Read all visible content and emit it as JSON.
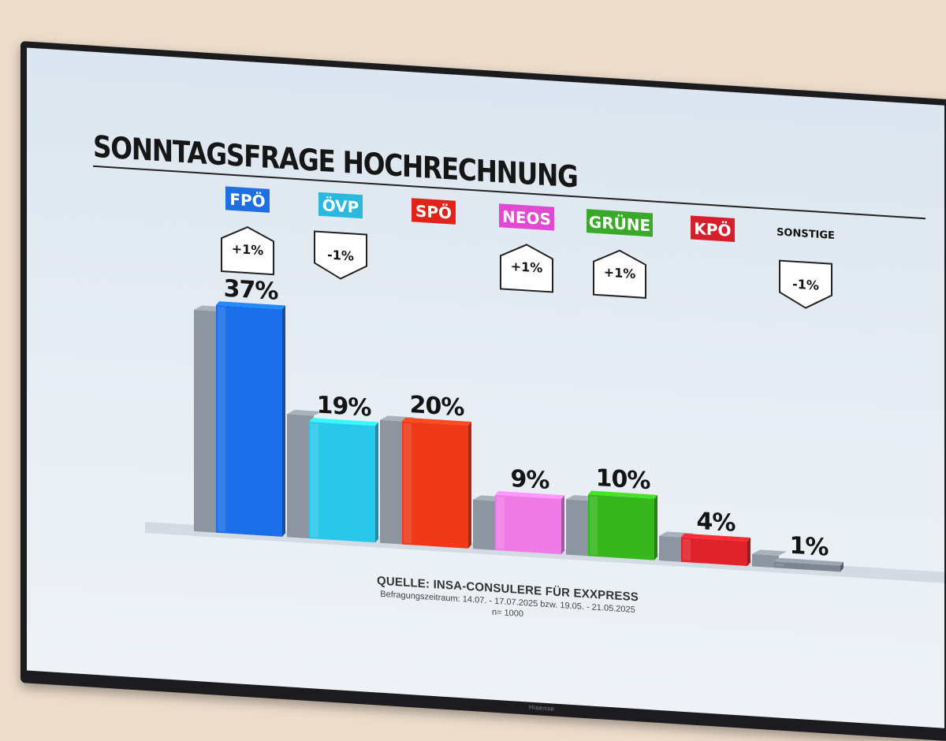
{
  "chart_data": {
    "type": "bar",
    "title": "SONNTAGSFRAGE HOCHRECHNUNG",
    "categories": [
      "FPÖ",
      "ÖVP",
      "SPÖ",
      "NEOS",
      "GRÜNE",
      "KPÖ",
      "SONSTIGE"
    ],
    "series": [
      {
        "values": [
          37,
          19,
          20,
          9,
          10,
          4,
          1
        ]
      }
    ],
    "previous_values": [
      36,
      20,
      20,
      8,
      9,
      4,
      2
    ],
    "value_labels": [
      "37%",
      "19%",
      "20%",
      "9%",
      "10%",
      "4%",
      "1%"
    ],
    "changes": [
      "+1%",
      "-1%",
      "",
      "+1%",
      "+1%",
      "",
      "-1%"
    ],
    "change_direction": [
      "up",
      "down",
      "",
      "up",
      "up",
      "",
      "down"
    ],
    "colors": [
      "#1a6ee8",
      "#29c8ea",
      "#ee3a18",
      "#f07ae6",
      "#36b81c",
      "#e0222a",
      "#7c8590"
    ],
    "label_bg": [
      "#1f6fe0",
      "#2ab8dc",
      "#e2231a",
      "#e04ad2",
      "#3aa92a",
      "#d51f2a",
      ""
    ],
    "label_fg": [
      "#ffffff",
      "#ffffff",
      "#ffffff",
      "#ffffff",
      "#ffffff",
      "#ffffff",
      "#111111"
    ],
    "ylim": [
      0,
      40
    ],
    "xlabel": "",
    "ylabel": "",
    "grid": false,
    "legend": "none"
  },
  "footer": {
    "source": "QUELLE: INSA-CONSULERE FÜR EXXPRESS",
    "period": "Befragungszeitraum: 14.07. - 17.07.2025 bzw. 19.05. - 21.05.2025",
    "sample": "n= 1000"
  },
  "device": {
    "brand": "Hisense"
  }
}
